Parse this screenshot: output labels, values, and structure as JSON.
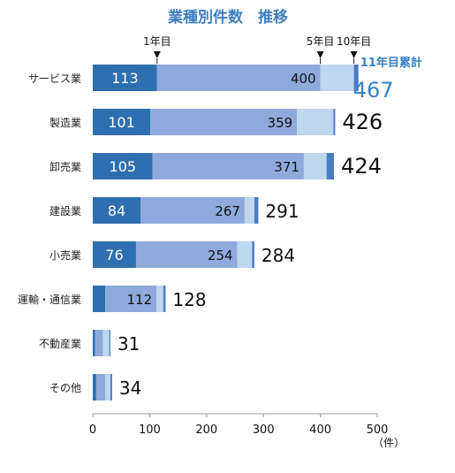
{
  "chart_data": {
    "type": "bar",
    "orientation": "horizontal",
    "stacked": true,
    "title": "業種別件数　推移",
    "unit_label": "（件）",
    "xlim": [
      0,
      500
    ],
    "xticks": [
      "0",
      "100",
      "200",
      "300",
      "400",
      "500"
    ],
    "grid": false,
    "categories": [
      "サービス業",
      "製造業",
      "卸売業",
      "建設業",
      "小売業",
      "運輸・通信業",
      "不動産業",
      "その他"
    ],
    "series": [
      {
        "values": [
          113,
          101,
          105,
          84,
          76,
          22,
          4,
          6
        ],
        "labels": [
          "113",
          "101",
          "105",
          "84",
          "76",
          "",
          "",
          ""
        ],
        "color": "#2e6fb0"
      },
      {
        "values": [
          287,
          258,
          266,
          183,
          178,
          90,
          14,
          16
        ],
        "labels": [
          "400",
          "359",
          "371",
          "267",
          "254",
          "112",
          "",
          ""
        ],
        "color": "#8eaadd"
      },
      {
        "values": [
          59,
          64,
          40,
          17,
          26,
          12,
          11,
          9
        ],
        "labels": [
          "",
          "",
          "",
          "",
          "",
          "",
          "",
          ""
        ],
        "color": "#bed7ef"
      },
      {
        "values": [
          8,
          3,
          13,
          7,
          4,
          4,
          2,
          3
        ],
        "labels": [
          "",
          "",
          "",
          "",
          "",
          "",
          "",
          ""
        ],
        "color": "#4a7cc4"
      }
    ],
    "totals": [
      467,
      426,
      424,
      291,
      284,
      128,
      31,
      34
    ],
    "total_labels": [
      "467",
      "426",
      "424",
      "291",
      "284",
      "128",
      "31",
      "34"
    ],
    "markers": [
      {
        "label": "1年目",
        "x": 113
      },
      {
        "label": "5年目",
        "x": 400
      },
      {
        "label": "10年目",
        "x": 459
      }
    ],
    "annotation": "11年目累計"
  }
}
